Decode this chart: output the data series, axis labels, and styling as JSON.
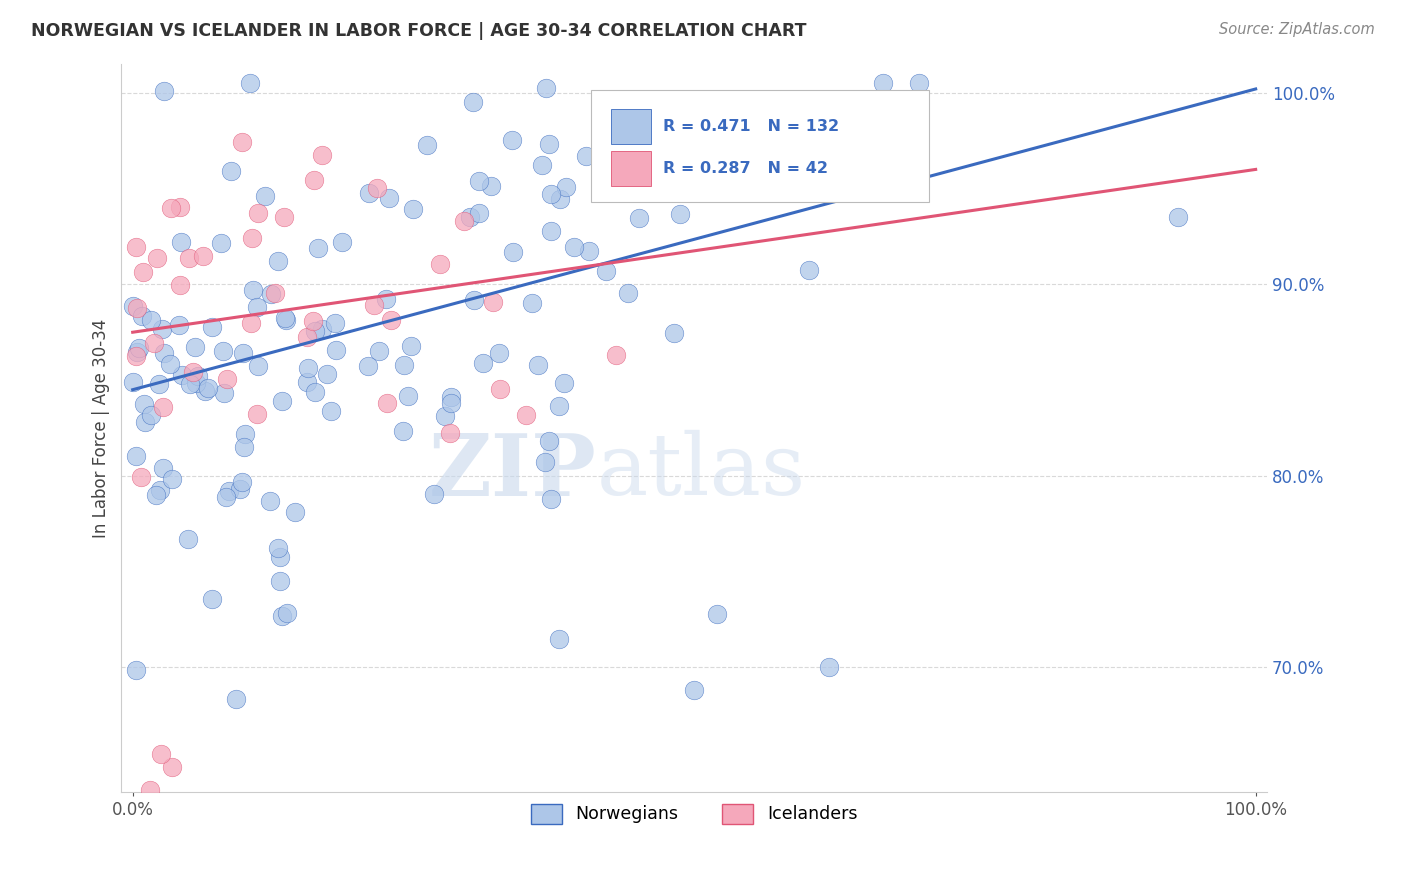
{
  "title": "NORWEGIAN VS ICELANDER IN LABOR FORCE | AGE 30-34 CORRELATION CHART",
  "source": "Source: ZipAtlas.com",
  "ylabel": "In Labor Force | Age 30-34",
  "ytick_values": [
    0.7,
    0.8,
    0.9,
    1.0
  ],
  "ytick_labels": [
    "70.0%",
    "80.0%",
    "90.0%",
    "100.0%"
  ],
  "xlim": [
    -0.01,
    1.01
  ],
  "ylim": [
    0.635,
    1.015
  ],
  "norwegian_R": 0.471,
  "norwegian_N": 132,
  "icelander_R": 0.287,
  "icelander_N": 42,
  "norwegian_color": "#adc6e8",
  "icelander_color": "#f5a8bb",
  "line_norwegian_color": "#3a6abf",
  "line_icelander_color": "#e05575",
  "nor_line_start_y": 0.845,
  "nor_line_end_y": 1.002,
  "ice_line_start_y": 0.875,
  "ice_line_end_y": 0.96,
  "watermark_zip": "ZIP",
  "watermark_atlas": "atlas",
  "legend_norwegians": "Norwegians",
  "legend_icelanders": "Icelanders"
}
